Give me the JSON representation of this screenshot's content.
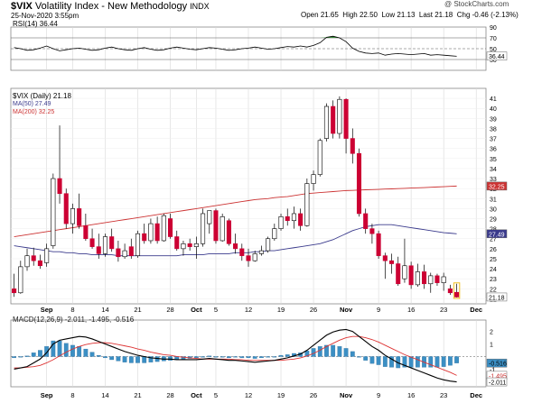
{
  "header": {
    "symbol": "$VIX",
    "name": "Volatility Index - New Methodology",
    "exchange": "INDX",
    "date": "25-Nov-2020 3:55pm",
    "copyright": "@ StockCharts.com",
    "open_label": "Open",
    "open": "21.65",
    "high_label": "High",
    "high": "22.50",
    "low_label": "Low",
    "low": "21.13",
    "last_label": "Last",
    "last": "21.18",
    "chg_label": "Chg",
    "chg": "-0.46 (-2.13%)"
  },
  "colors": {
    "up": "#ffffff",
    "down": "#cc0033",
    "candle_edge": "#000000",
    "ma50": "#3a3a8c",
    "ma200": "#cc3333",
    "macd_hist": "#3b8fc4",
    "macd_line": "#000000",
    "macd_signal": "#dd3333",
    "rsi_line": "#000000",
    "rsi_fill": "#3a8a3a",
    "grid": "#d8d8d8",
    "tag_vix": "#ffffff",
    "tag_ma50": "#3a3a8c",
    "tag_ma200": "#cc3333",
    "tag_macd": "#3b8fc4"
  },
  "chart_data": [
    {
      "type": "line",
      "panel": "rsi",
      "legend": "RSI(14) 36.44",
      "ylim": [
        10,
        90
      ],
      "yticks": [
        30,
        50,
        70
      ],
      "yticks_extra": [
        90
      ],
      "reference_lines": [
        30,
        50,
        70
      ],
      "last_value": "36.44",
      "values": [
        52,
        50,
        47,
        48,
        51,
        55,
        50,
        46,
        48,
        50,
        51,
        49,
        47,
        48,
        51,
        53,
        50,
        48,
        47,
        50,
        52,
        49,
        47,
        48,
        51,
        53,
        51,
        49,
        48,
        50,
        52,
        51,
        49,
        47,
        48,
        50,
        51,
        53,
        51,
        49,
        50,
        52,
        54,
        53,
        55,
        53,
        56,
        61,
        71,
        73,
        70,
        63,
        51,
        45,
        42,
        41,
        42,
        38,
        40,
        41,
        40,
        39,
        40,
        41,
        38,
        39,
        38,
        37,
        36
      ]
    },
    {
      "type": "candlestick",
      "panel": "price",
      "legend": [
        "$VIX (Daily) 21.18",
        "MA(50) 27.49",
        "MA(200) 32.25"
      ],
      "ylim": [
        20.5,
        42
      ],
      "yticks": [
        21,
        22,
        23,
        24,
        25,
        26,
        27,
        28,
        29,
        30,
        31,
        32,
        33,
        34,
        35,
        36,
        37,
        38,
        39,
        40,
        41
      ],
      "tags": {
        "ma200": "32.25",
        "ma50": "27.49",
        "last": "21.18"
      },
      "x_labels": [
        {
          "label": "Sep",
          "i": 5
        },
        {
          "label": "8",
          "i": 9
        },
        {
          "label": "14",
          "i": 14
        },
        {
          "label": "21",
          "i": 19
        },
        {
          "label": "28",
          "i": 24
        },
        {
          "label": "Oct",
          "i": 28
        },
        {
          "label": "5",
          "i": 31
        },
        {
          "label": "12",
          "i": 36
        },
        {
          "label": "19",
          "i": 41
        },
        {
          "label": "26",
          "i": 46
        },
        {
          "label": "Nov",
          "i": 51
        },
        {
          "label": "9",
          "i": 56
        },
        {
          "label": "16",
          "i": 61
        },
        {
          "label": "23",
          "i": 66
        },
        {
          "label": "Dec",
          "i": 71
        }
      ],
      "ohlc": [
        [
          22.0,
          23.5,
          21.2,
          21.6
        ],
        [
          21.6,
          24.8,
          21.5,
          24.2
        ],
        [
          24.2,
          26.0,
          23.8,
          25.3
        ],
        [
          25.3,
          26.1,
          24.3,
          24.8
        ],
        [
          24.8,
          25.4,
          24.0,
          24.3
        ],
        [
          24.6,
          26.5,
          24.2,
          26.0
        ],
        [
          26.3,
          33.5,
          26.0,
          33.0
        ],
        [
          33.0,
          38.3,
          30.5,
          31.5
        ],
        [
          31.5,
          32.0,
          28.0,
          28.5
        ],
        [
          28.5,
          30.5,
          27.5,
          30.0
        ],
        [
          30.0,
          31.5,
          28.0,
          28.3
        ],
        [
          28.3,
          29.5,
          26.8,
          27.0
        ],
        [
          27.0,
          28.0,
          26.0,
          26.2
        ],
        [
          26.2,
          27.5,
          25.0,
          25.5
        ],
        [
          25.5,
          27.5,
          25.2,
          27.2
        ],
        [
          27.2,
          28.0,
          25.7,
          26.0
        ],
        [
          26.0,
          26.8,
          24.7,
          25.2
        ],
        [
          25.2,
          26.5,
          25.0,
          25.8
        ],
        [
          26.2,
          27.0,
          25.0,
          25.3
        ],
        [
          25.3,
          27.8,
          25.1,
          27.5
        ],
        [
          27.5,
          28.5,
          26.5,
          26.8
        ],
        [
          26.8,
          29.0,
          26.5,
          28.5
        ],
        [
          28.5,
          29.2,
          26.5,
          26.8
        ],
        [
          26.8,
          29.5,
          26.7,
          29.3
        ],
        [
          29.0,
          29.5,
          27.0,
          27.2
        ],
        [
          27.2,
          27.8,
          25.8,
          26.0
        ],
        [
          26.0,
          26.8,
          25.3,
          26.5
        ],
        [
          26.5,
          27.0,
          25.8,
          26.2
        ],
        [
          26.2,
          27.2,
          25.0,
          26.5
        ],
        [
          26.5,
          30.0,
          26.2,
          29.5
        ],
        [
          28.5,
          29.8,
          27.5,
          29.8
        ],
        [
          29.8,
          30.0,
          26.5,
          26.8
        ],
        [
          26.8,
          29.5,
          26.7,
          29.2
        ],
        [
          28.8,
          29.0,
          26.3,
          26.5
        ],
        [
          26.5,
          27.5,
          25.5,
          26.0
        ],
        [
          26.0,
          26.5,
          24.8,
          25.3
        ],
        [
          25.3,
          26.0,
          24.2,
          24.8
        ],
        [
          24.8,
          25.8,
          24.7,
          25.5
        ],
        [
          25.5,
          26.3,
          25.3,
          25.8
        ],
        [
          25.8,
          27.2,
          25.6,
          27.0
        ],
        [
          27.0,
          28.5,
          26.8,
          28.0
        ],
        [
          28.0,
          29.5,
          27.8,
          29.2
        ],
        [
          29.2,
          30.0,
          28.3,
          28.8
        ],
        [
          28.8,
          30.2,
          28.0,
          29.5
        ],
        [
          29.5,
          30.0,
          27.8,
          28.3
        ],
        [
          28.3,
          33.0,
          28.2,
          32.5
        ],
        [
          32.5,
          33.8,
          31.8,
          33.4
        ],
        [
          33.4,
          37.0,
          33.2,
          36.8
        ],
        [
          37.0,
          40.5,
          36.7,
          40.2
        ],
        [
          40.2,
          40.8,
          37.0,
          37.5
        ],
        [
          37.5,
          41.2,
          37.0,
          40.9
        ],
        [
          40.9,
          41.0,
          35.5,
          37.0
        ],
        [
          37.0,
          38.0,
          34.5,
          35.5
        ],
        [
          35.5,
          36.0,
          29.2,
          29.5
        ],
        [
          29.5,
          30.0,
          27.5,
          28.0
        ],
        [
          28.0,
          28.5,
          26.5,
          27.5
        ],
        [
          27.5,
          27.8,
          25.0,
          25.3
        ],
        [
          25.3,
          25.6,
          23.0,
          24.8
        ],
        [
          24.8,
          25.5,
          23.5,
          24.5
        ],
        [
          24.5,
          25.2,
          22.3,
          22.5
        ],
        [
          23.0,
          27.0,
          22.6,
          24.3
        ],
        [
          24.3,
          24.7,
          22.0,
          22.4
        ],
        [
          22.4,
          24.5,
          22.2,
          23.7
        ],
        [
          23.7,
          24.4,
          22.0,
          22.5
        ],
        [
          22.5,
          23.6,
          21.6,
          23.3
        ],
        [
          23.3,
          23.5,
          22.3,
          22.6
        ],
        [
          22.6,
          23.6,
          21.8,
          23.2
        ],
        [
          22.0,
          22.4,
          21.4,
          21.6
        ],
        [
          21.65,
          22.5,
          21.13,
          21.18
        ]
      ],
      "ma50": [
        26.3,
        26.2,
        26.1,
        26.0,
        25.9,
        25.8,
        25.7,
        25.7,
        25.6,
        25.6,
        25.5,
        25.5,
        25.4,
        25.4,
        25.4,
        25.4,
        25.3,
        25.3,
        25.3,
        25.3,
        25.3,
        25.3,
        25.3,
        25.3,
        25.3,
        25.3,
        25.4,
        25.4,
        25.4,
        25.4,
        25.5,
        25.5,
        25.5,
        25.5,
        25.6,
        25.6,
        25.6,
        25.7,
        25.7,
        25.8,
        25.8,
        25.9,
        26.0,
        26.1,
        26.2,
        26.3,
        26.4,
        26.5,
        26.7,
        26.9,
        27.2,
        27.5,
        27.8,
        28.0,
        28.2,
        28.3,
        28.4,
        28.4,
        28.4,
        28.3,
        28.2,
        28.1,
        28.0,
        27.9,
        27.8,
        27.7,
        27.6,
        27.55,
        27.49
      ],
      "ma200": [
        27.2,
        27.3,
        27.4,
        27.5,
        27.6,
        27.7,
        27.8,
        27.9,
        28.0,
        28.1,
        28.2,
        28.3,
        28.4,
        28.5,
        28.6,
        28.7,
        28.8,
        28.9,
        29.0,
        29.1,
        29.2,
        29.3,
        29.4,
        29.5,
        29.6,
        29.7,
        29.8,
        29.9,
        30.0,
        30.1,
        30.2,
        30.3,
        30.4,
        30.5,
        30.6,
        30.7,
        30.8,
        30.9,
        30.95,
        31.0,
        31.1,
        31.15,
        31.2,
        31.3,
        31.4,
        31.5,
        31.55,
        31.6,
        31.65,
        31.7,
        31.75,
        31.8,
        31.82,
        31.85,
        31.88,
        31.9,
        31.92,
        31.95,
        31.97,
        32.0,
        32.02,
        32.05,
        32.08,
        32.1,
        32.13,
        32.16,
        32.19,
        32.22,
        32.25
      ]
    },
    {
      "type": "bar+line",
      "panel": "macd",
      "legend": "MACD(12,26,9) -2.011, -1.495, -0.516",
      "ylim": [
        -2.4,
        2.9
      ],
      "yticks": [
        -1,
        0,
        1,
        2
      ],
      "tags": {
        "hist": "-0.516",
        "signal": "-1.495",
        "macd": "-2.011"
      },
      "macd": [
        -1.0,
        -0.9,
        -0.8,
        -0.5,
        -0.2,
        0.3,
        1.0,
        1.3,
        1.4,
        1.5,
        1.6,
        1.55,
        1.4,
        1.2,
        1.0,
        0.8,
        0.6,
        0.4,
        0.25,
        0.1,
        0.0,
        -0.1,
        -0.15,
        -0.2,
        -0.2,
        -0.25,
        -0.25,
        -0.25,
        -0.25,
        -0.2,
        -0.15,
        -0.2,
        -0.25,
        -0.3,
        -0.3,
        -0.35,
        -0.4,
        -0.45,
        -0.4,
        -0.35,
        -0.3,
        -0.2,
        -0.1,
        0.05,
        0.2,
        0.5,
        0.9,
        1.3,
        1.7,
        1.95,
        2.1,
        2.15,
        2.0,
        1.6,
        1.2,
        0.8,
        0.5,
        0.1,
        -0.2,
        -0.5,
        -0.7,
        -0.9,
        -1.1,
        -1.3,
        -1.5,
        -1.7,
        -1.85,
        -1.95,
        -2.011
      ],
      "signal": [
        -0.9,
        -0.9,
        -0.85,
        -0.8,
        -0.7,
        -0.5,
        -0.25,
        0.05,
        0.35,
        0.6,
        0.8,
        0.95,
        1.05,
        1.1,
        1.1,
        1.05,
        0.95,
        0.85,
        0.75,
        0.6,
        0.5,
        0.35,
        0.25,
        0.15,
        0.1,
        0.0,
        -0.05,
        -0.1,
        -0.15,
        -0.2,
        -0.2,
        -0.2,
        -0.2,
        -0.2,
        -0.25,
        -0.25,
        -0.3,
        -0.3,
        -0.3,
        -0.3,
        -0.3,
        -0.3,
        -0.25,
        -0.2,
        -0.1,
        0.05,
        0.25,
        0.5,
        0.8,
        1.05,
        1.3,
        1.5,
        1.6,
        1.6,
        1.5,
        1.35,
        1.15,
        0.9,
        0.65,
        0.4,
        0.15,
        -0.05,
        -0.25,
        -0.45,
        -0.65,
        -0.85,
        -1.05,
        -1.25,
        -1.495
      ]
    }
  ]
}
